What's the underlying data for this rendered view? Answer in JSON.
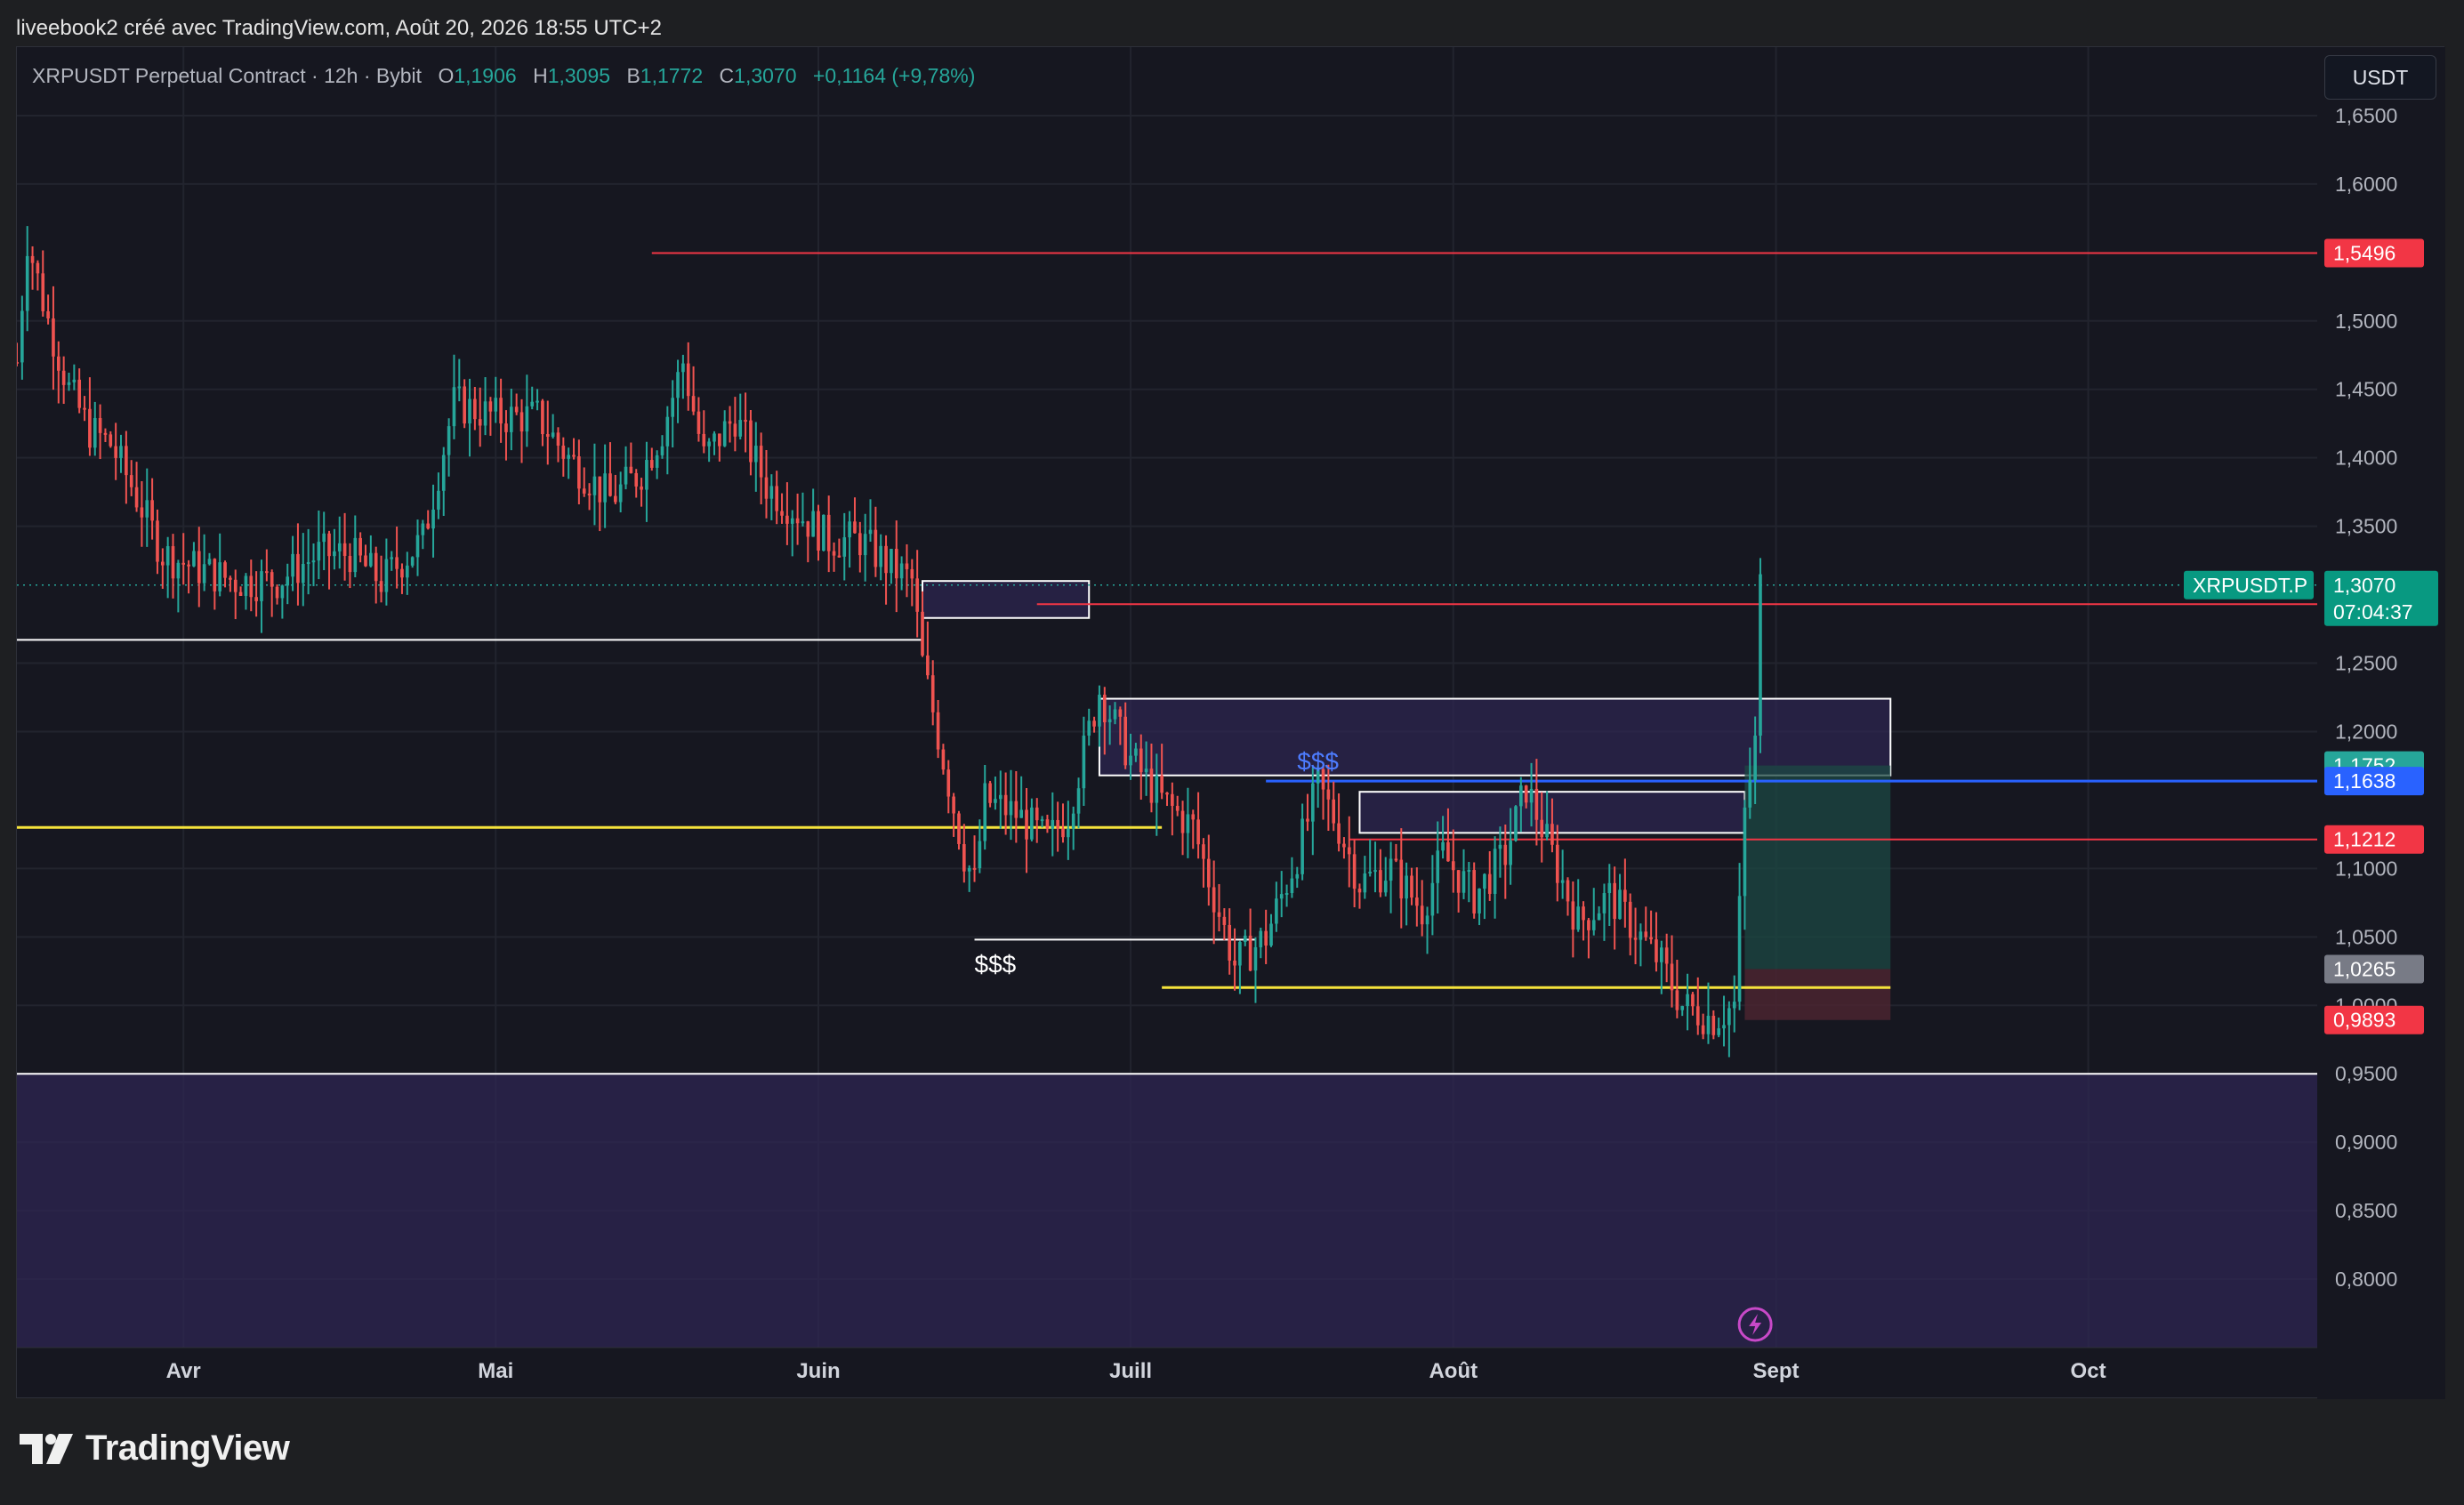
{
  "header": {
    "text": "liveebook2 créé avec TradingView.com, Août 20, 2026 18:55 UTC+2"
  },
  "legend": {
    "symbol": "XRPUSDT Perpetual Contract · 12h · Bybit",
    "open_key": "O",
    "open": "1,1906",
    "high_key": "H",
    "high": "1,3095",
    "low_key": "B",
    "low": "1,1772",
    "close_key": "C",
    "close": "1,3070",
    "change": "+0,1164 (+9,78%)"
  },
  "currency_button": "USDT",
  "brand": {
    "name": "TradingView",
    "icon": "tradingview-logo-icon"
  },
  "flash_icon": "lightning-icon",
  "colors": {
    "up": "#26a69a",
    "down": "#ef5350",
    "red_level": "#f23645",
    "blue_level": "#2962ff",
    "yellow_level": "#f5e33b",
    "zone_fill": "#2d2652",
    "target_fill": "#1c4843",
    "stop_fill": "#4a2530"
  },
  "chart_data": {
    "type": "candlestick",
    "ylim": [
      0.75,
      1.7
    ],
    "yticks": [
      "1,6500",
      "1,6000",
      "1,5000",
      "1,4500",
      "1,4000",
      "1,3500",
      "1,2500",
      "1,2000",
      "1,1000",
      "1,0500",
      "1,0000",
      "0,9500",
      "0,9000",
      "0,8500",
      "0,8000"
    ],
    "ytick_values": [
      1.65,
      1.6,
      1.5,
      1.45,
      1.4,
      1.35,
      1.25,
      1.2,
      1.1,
      1.05,
      1.0,
      0.95,
      0.9,
      0.85,
      0.8
    ],
    "xticks": [
      {
        "label": "Avr",
        "date": "2026-04-01"
      },
      {
        "label": "Mai",
        "date": "2026-05-01"
      },
      {
        "label": "Juin",
        "date": "2026-06-01"
      },
      {
        "label": "Juill",
        "date": "2026-07-01"
      },
      {
        "label": "Août",
        "date": "2026-08-01"
      },
      {
        "label": "Sept",
        "date": "2026-09-01"
      },
      {
        "label": "Oct",
        "date": "2026-10-01"
      }
    ],
    "xlim": [
      "2026-03-16",
      "2026-10-23"
    ],
    "price_path": [
      [
        "2026-03-16",
        1.47
      ],
      [
        "2026-03-17",
        1.56
      ],
      [
        "2026-03-19",
        1.5
      ],
      [
        "2026-03-21",
        1.45
      ],
      [
        "2026-03-23",
        1.42
      ],
      [
        "2026-03-25",
        1.41
      ],
      [
        "2026-03-27",
        1.38
      ],
      [
        "2026-03-30",
        1.33
      ],
      [
        "2026-04-02",
        1.32
      ],
      [
        "2026-04-06",
        1.31
      ],
      [
        "2026-04-10",
        1.31
      ],
      [
        "2026-04-14",
        1.33
      ],
      [
        "2026-04-17",
        1.33
      ],
      [
        "2026-04-20",
        1.31
      ],
      [
        "2026-04-24",
        1.34
      ],
      [
        "2026-04-27",
        1.44
      ],
      [
        "2026-05-01",
        1.43
      ],
      [
        "2026-05-05",
        1.43
      ],
      [
        "2026-05-08",
        1.4
      ],
      [
        "2026-05-12",
        1.37
      ],
      [
        "2026-05-15",
        1.39
      ],
      [
        "2026-05-17",
        1.42
      ],
      [
        "2026-05-19",
        1.47
      ],
      [
        "2026-05-21",
        1.4
      ],
      [
        "2026-05-24",
        1.43
      ],
      [
        "2026-05-27",
        1.38
      ],
      [
        "2026-05-30",
        1.36
      ],
      [
        "2026-06-02",
        1.34
      ],
      [
        "2026-06-05",
        1.34
      ],
      [
        "2026-06-08",
        1.32
      ],
      [
        "2026-06-10",
        1.31
      ],
      [
        "2026-06-11",
        1.25
      ],
      [
        "2026-06-13",
        1.18
      ],
      [
        "2026-06-15",
        1.11
      ],
      [
        "2026-06-16",
        1.09
      ],
      [
        "2026-06-17",
        1.15
      ],
      [
        "2026-06-20",
        1.14
      ],
      [
        "2026-06-23",
        1.12
      ],
      [
        "2026-06-25",
        1.14
      ],
      [
        "2026-06-28",
        1.23
      ],
      [
        "2026-07-01",
        1.18
      ],
      [
        "2026-07-04",
        1.15
      ],
      [
        "2026-07-07",
        1.13
      ],
      [
        "2026-07-09",
        1.08
      ],
      [
        "2026-07-11",
        1.03
      ],
      [
        "2026-07-14",
        1.05
      ],
      [
        "2026-07-17",
        1.11
      ],
      [
        "2026-07-19",
        1.16
      ],
      [
        "2026-07-21",
        1.13
      ],
      [
        "2026-07-23",
        1.09
      ],
      [
        "2026-07-26",
        1.1
      ],
      [
        "2026-07-29",
        1.07
      ],
      [
        "2026-07-31",
        1.11
      ],
      [
        "2026-08-03",
        1.08
      ],
      [
        "2026-08-06",
        1.11
      ],
      [
        "2026-08-08",
        1.16
      ],
      [
        "2026-08-10",
        1.12
      ],
      [
        "2026-08-13",
        1.06
      ],
      [
        "2026-08-16",
        1.08
      ],
      [
        "2026-08-18",
        1.06
      ],
      [
        "2026-08-21",
        1.03
      ],
      [
        "2026-08-23",
        1.0
      ],
      [
        "2026-08-26",
        0.99
      ],
      [
        "2026-08-28",
        1.0
      ],
      [
        "2026-08-29",
        1.14
      ],
      [
        "2026-08-30",
        1.191
      ],
      [
        "2026-08-30T12:00",
        1.307
      ]
    ],
    "last": {
      "symbol": "XRPUSDT.P",
      "price": "1,3070",
      "countdown": "07:04:37",
      "value": 1.307
    },
    "levels": [
      {
        "label": "1,5496",
        "value": 1.5496,
        "color": "#f23645",
        "from": "2026-05-16"
      },
      {
        "label": "1,2931",
        "value": 1.2931,
        "color": "#f23645",
        "from": "2026-06-22"
      },
      {
        "label": "1,1752",
        "value": 1.1752,
        "color": "#26a69a",
        "from": null
      },
      {
        "label": "1,1638",
        "value": 1.1638,
        "color": "#2962ff",
        "from": "2026-07-14"
      },
      {
        "label": "1,1212",
        "value": 1.1212,
        "color": "#f23645",
        "from": "2026-07-22"
      },
      {
        "label": "1,0265",
        "value": 1.0265,
        "color": "#787b86",
        "from": null
      },
      {
        "label": "0,9893",
        "value": 0.9893,
        "color": "#f23645",
        "from": null
      }
    ],
    "lines": [
      {
        "value": 1.267,
        "color": "#ffffff",
        "from": "2026-03-16",
        "to": "2026-06-11"
      },
      {
        "value": 1.13,
        "color": "#f5e33b",
        "from": "2026-03-16",
        "to": "2026-07-04"
      },
      {
        "value": 1.048,
        "color": "#ffffff",
        "from": "2026-06-16",
        "to": "2026-07-13"
      },
      {
        "value": 1.013,
        "color": "#f5e33b",
        "from": "2026-07-04",
        "to": "2026-09-12"
      },
      {
        "value": 0.95,
        "color": "#ffffff",
        "from": "2026-03-16",
        "to": "2026-10-23"
      }
    ],
    "zones": [
      {
        "y0": 1.283,
        "y1": 1.31,
        "from": "2026-06-11",
        "to": "2026-06-27"
      },
      {
        "y0": 1.168,
        "y1": 1.224,
        "from": "2026-06-28",
        "to": "2026-09-12"
      },
      {
        "y0": 1.126,
        "y1": 1.156,
        "from": "2026-07-23",
        "to": "2026-08-29"
      },
      {
        "y0": 0.75,
        "y1": 0.95,
        "from": "2026-03-16",
        "to": "2026-10-23"
      }
    ],
    "position": {
      "entry": 1.0265,
      "target": 1.1752,
      "stop": 0.9893,
      "from": "2026-08-29",
      "to": "2026-09-12"
    },
    "annotations": [
      {
        "text": "$$$",
        "x": "2026-07-17",
        "y": 1.172,
        "color": "#4d7cff"
      },
      {
        "text": "$$$",
        "x": "2026-06-16",
        "y": 1.024,
        "color": "#ffffff"
      }
    ]
  }
}
